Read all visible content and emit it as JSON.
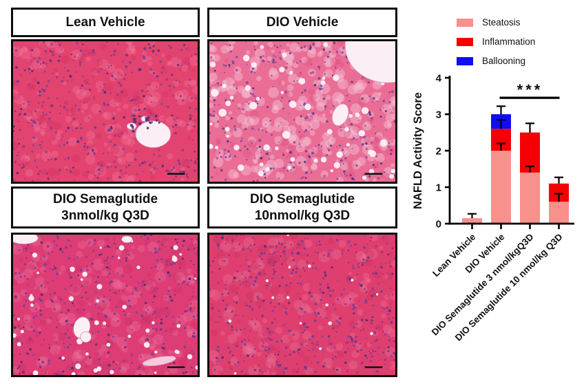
{
  "figure": {
    "panels": [
      {
        "title": "Lean Vehicle"
      },
      {
        "title": "DIO Vehicle"
      },
      {
        "title": "DIO Semaglutide\n3nmol/kg Q3D"
      },
      {
        "title": "DIO Semaglutide\n10nmol/kg Q3D"
      }
    ],
    "stain": "H&E liver histology micrograph",
    "scale_bar": "present bottom-right of each micrograph"
  },
  "chart_data": {
    "type": "bar",
    "stacked": true,
    "title": "",
    "ylabel": "NAFLD Activity Score",
    "xlabel": "",
    "ylim": [
      0,
      4
    ],
    "yticks": [
      0,
      1,
      2,
      3,
      4
    ],
    "grid": false,
    "legend_position": "top-right",
    "categories": [
      "Lean Vehicle",
      "DIO Vehicle",
      "DIO Semaglutide 3 nmol/kgQ3D",
      "DIO Semaglutide 10 nmol/kg Q3D"
    ],
    "series": [
      {
        "name": "Steatosis",
        "color": "#F8908C",
        "values": [
          0.15,
          2.0,
          1.4,
          0.6
        ],
        "errors": [
          0.12,
          0.2,
          0.17,
          0.22
        ]
      },
      {
        "name": "Inflammation",
        "color": "#F40004",
        "values": [
          0,
          0.6,
          1.1,
          0.5
        ],
        "errors": [
          0,
          0.25,
          0.25,
          0.17
        ]
      },
      {
        "name": "Ballooning",
        "color": "#0E0EEF",
        "values": [
          0,
          0.4,
          0,
          0
        ],
        "errors": [
          0,
          0.22,
          0,
          0
        ]
      }
    ],
    "significance": {
      "label": "***",
      "from_category": 1,
      "to_category": 3,
      "y": 3.45
    },
    "axis_color": "#000000",
    "error_bar_color": "#000000"
  }
}
